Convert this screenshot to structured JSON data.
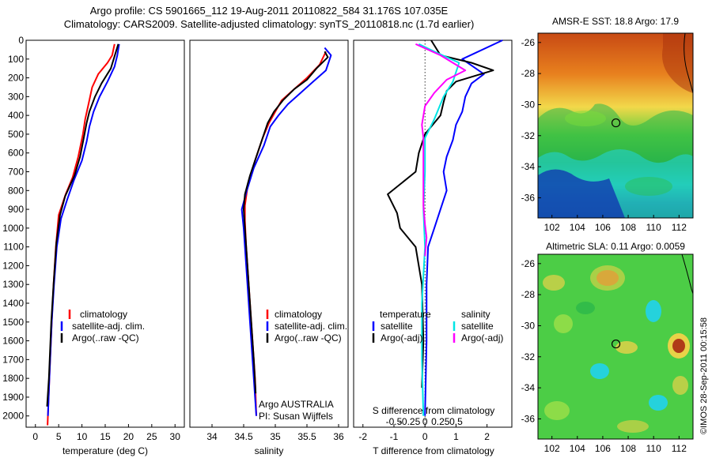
{
  "header": {
    "line1": "Argo profile: CS 5901665_112 19-Aug-2011 20110822_584 31.176S 107.035E",
    "line2": "Climatology: CARS2009. Satellite-adjusted climatology: synTS_20110818.nc (1.7d earlier)"
  },
  "colors": {
    "climatology": "#ff0000",
    "satellite": "#0000ff",
    "argo": "#000000",
    "cyan": "#00e5e5",
    "magenta": "#ff00ff"
  },
  "y_ticks": [
    0,
    100,
    200,
    300,
    400,
    500,
    600,
    700,
    800,
    900,
    1000,
    1100,
    1200,
    1300,
    1400,
    1500,
    1600,
    1700,
    1800,
    1900,
    2000
  ],
  "chart_data": [
    {
      "type": "line",
      "xlabel": "temperature (deg C)",
      "xlim": [
        -2,
        32
      ],
      "ylim": [
        2060,
        0
      ],
      "xticks": [
        0,
        5,
        10,
        15,
        20,
        25,
        30
      ],
      "legend": [
        "climatology",
        "satellite-adj. clim.",
        "Argo(..raw -QC)"
      ],
      "series": [
        {
          "name": "climatology",
          "color_key": "climatology",
          "points": [
            [
              17.0,
              20
            ],
            [
              16.5,
              80
            ],
            [
              15.5,
              120
            ],
            [
              13.5,
              180
            ],
            [
              12.2,
              250
            ],
            [
              11.5,
              330
            ],
            [
              10.7,
              420
            ],
            [
              10.2,
              500
            ],
            [
              9.2,
              620
            ],
            [
              8.0,
              730
            ],
            [
              6.5,
              820
            ],
            [
              5.0,
              930
            ],
            [
              4.4,
              1100
            ],
            [
              3.9,
              1300
            ],
            [
              3.5,
              1500
            ],
            [
              3.0,
              1800
            ],
            [
              2.6,
              2050
            ]
          ]
        },
        {
          "name": "satellite-adj. clim.",
          "color_key": "satellite",
          "points": [
            [
              18.0,
              20
            ],
            [
              17.6,
              80
            ],
            [
              17.0,
              140
            ],
            [
              15.5,
              220
            ],
            [
              13.8,
              300
            ],
            [
              12.5,
              380
            ],
            [
              11.6,
              460
            ],
            [
              11.0,
              540
            ],
            [
              10.0,
              640
            ],
            [
              8.2,
              750
            ],
            [
              6.8,
              850
            ],
            [
              5.5,
              950
            ],
            [
              4.6,
              1100
            ],
            [
              4.0,
              1300
            ],
            [
              3.5,
              1500
            ],
            [
              3.0,
              1800
            ],
            [
              2.7,
              2000
            ]
          ]
        },
        {
          "name": "Argo(..raw -QC)",
          "color_key": "argo",
          "points": [
            [
              17.8,
              20
            ],
            [
              17.2,
              70
            ],
            [
              16.2,
              150
            ],
            [
              14.2,
              230
            ],
            [
              12.8,
              300
            ],
            [
              11.6,
              380
            ],
            [
              11.0,
              440
            ],
            [
              10.4,
              520
            ],
            [
              9.6,
              620
            ],
            [
              8.4,
              720
            ],
            [
              6.4,
              830
            ],
            [
              5.3,
              930
            ],
            [
              4.5,
              1080
            ],
            [
              3.9,
              1300
            ],
            [
              3.4,
              1500
            ],
            [
              2.9,
              1800
            ],
            [
              2.5,
              1950
            ]
          ]
        }
      ]
    },
    {
      "type": "line",
      "xlabel": "salinity",
      "xlim": [
        33.65,
        36.15
      ],
      "ylim": [
        2060,
        0
      ],
      "xticks": [
        34,
        34.5,
        35,
        35.5,
        36
      ],
      "legend": [
        "climatology",
        "satellite-adj. clim.",
        "Argo(..raw -QC)"
      ],
      "annotations": [
        "Argo AUSTRALIA",
        "PI: Susan Wijffels"
      ],
      "series": [
        {
          "name": "climatology",
          "color_key": "climatology",
          "points": [
            [
              35.8,
              60
            ],
            [
              35.7,
              130
            ],
            [
              35.5,
              200
            ],
            [
              35.3,
              260
            ],
            [
              35.1,
              320
            ],
            [
              35.0,
              380
            ],
            [
              34.9,
              440
            ],
            [
              34.8,
              520
            ],
            [
              34.68,
              640
            ],
            [
              34.57,
              760
            ],
            [
              34.52,
              880
            ],
            [
              34.52,
              960
            ],
            [
              34.54,
              1100
            ],
            [
              34.57,
              1250
            ],
            [
              34.6,
              1400
            ],
            [
              34.64,
              1600
            ],
            [
              34.68,
              1800
            ],
            [
              34.7,
              2000
            ]
          ]
        },
        {
          "name": "satellite-adj. clim.",
          "color_key": "satellite",
          "points": [
            [
              35.78,
              40
            ],
            [
              35.88,
              80
            ],
            [
              35.8,
              160
            ],
            [
              35.6,
              220
            ],
            [
              35.4,
              280
            ],
            [
              35.2,
              340
            ],
            [
              35.05,
              400
            ],
            [
              34.92,
              460
            ],
            [
              34.82,
              560
            ],
            [
              34.66,
              680
            ],
            [
              34.55,
              800
            ],
            [
              34.47,
              900
            ],
            [
              34.5,
              1000
            ],
            [
              34.53,
              1150
            ],
            [
              34.56,
              1300
            ],
            [
              34.6,
              1500
            ],
            [
              34.64,
              1700
            ],
            [
              34.68,
              1900
            ],
            [
              34.7,
              2000
            ]
          ]
        },
        {
          "name": "Argo(..raw -QC)",
          "color_key": "argo",
          "points": [
            [
              35.78,
              60
            ],
            [
              35.83,
              90
            ],
            [
              35.65,
              150
            ],
            [
              35.5,
              210
            ],
            [
              35.3,
              260
            ],
            [
              35.12,
              320
            ],
            [
              34.98,
              380
            ],
            [
              34.88,
              440
            ],
            [
              34.8,
              520
            ],
            [
              34.7,
              620
            ],
            [
              34.6,
              720
            ],
            [
              34.52,
              820
            ],
            [
              34.5,
              900
            ],
            [
              34.52,
              1000
            ],
            [
              34.55,
              1150
            ],
            [
              34.58,
              1300
            ],
            [
              34.62,
              1500
            ],
            [
              34.66,
              1700
            ],
            [
              34.69,
              1880
            ]
          ]
        }
      ]
    },
    {
      "type": "line",
      "xlabel": "T difference from climatology",
      "xlabel_top": "S difference from climatology",
      "xlim": [
        -2.3,
        2.8
      ],
      "ylim": [
        2060,
        0
      ],
      "xticks": [
        -2,
        -1,
        0,
        1,
        2
      ],
      "xticks_top": [
        -0.5,
        -0.25,
        0,
        0.25,
        0.5
      ],
      "legend_temperature": [
        "temperature",
        "satellite",
        "Argo(-adj)"
      ],
      "legend_salinity": [
        "salinity",
        "satellite",
        "Argo(-adj)"
      ],
      "series": [
        {
          "name": "temperature satellite",
          "color_key": "satellite",
          "points": [
            [
              2.5,
              0
            ],
            [
              1.2,
              100
            ],
            [
              1.9,
              180
            ],
            [
              1.5,
              230
            ],
            [
              1.3,
              300
            ],
            [
              1.2,
              380
            ],
            [
              1.0,
              450
            ],
            [
              0.9,
              530
            ],
            [
              0.7,
              620
            ],
            [
              0.6,
              700
            ],
            [
              0.7,
              800
            ],
            [
              0.5,
              900
            ],
            [
              0.3,
              1000
            ],
            [
              0.1,
              1100
            ],
            [
              0.05,
              1300
            ],
            [
              0.05,
              1600
            ],
            [
              0.0,
              2000
            ]
          ]
        },
        {
          "name": "temperature Argo(-adj)",
          "color_key": "argo",
          "points": [
            [
              0.2,
              0
            ],
            [
              0.5,
              80
            ],
            [
              1.5,
              120
            ],
            [
              2.2,
              160
            ],
            [
              1.0,
              220
            ],
            [
              0.7,
              270
            ],
            [
              0.6,
              330
            ],
            [
              0.5,
              400
            ],
            [
              0.0,
              500
            ],
            [
              -0.2,
              600
            ],
            [
              -0.3,
              700
            ],
            [
              -1.2,
              820
            ],
            [
              -0.9,
              920
            ],
            [
              -0.8,
              1000
            ],
            [
              -0.3,
              1100
            ],
            [
              -0.1,
              1300
            ],
            [
              -0.05,
              1600
            ],
            [
              -0.1,
              1850
            ]
          ]
        },
        {
          "name": "salinity satellite",
          "color_key": "cyan",
          "points": [
            [
              -0.2,
              20
            ],
            [
              0.3,
              60
            ],
            [
              1.1,
              120
            ],
            [
              0.9,
              220
            ],
            [
              0.6,
              300
            ],
            [
              0.3,
              420
            ],
            [
              0.0,
              520
            ],
            [
              0.0,
              700
            ],
            [
              -0.05,
              900
            ],
            [
              0.0,
              1100
            ],
            [
              -0.1,
              1400
            ],
            [
              -0.1,
              1700
            ],
            [
              -0.05,
              2000
            ]
          ]
        },
        {
          "name": "salinity Argo(-adj)",
          "color_key": "magenta",
          "points": [
            [
              -0.3,
              20
            ],
            [
              0.5,
              80
            ],
            [
              1.3,
              160
            ],
            [
              0.7,
              210
            ],
            [
              0.3,
              280
            ],
            [
              0.0,
              350
            ],
            [
              -0.1,
              450
            ],
            [
              -0.05,
              520
            ],
            [
              -0.05,
              700
            ],
            [
              -0.05,
              880
            ],
            [
              0.0,
              980
            ],
            [
              0.05,
              1050
            ],
            [
              0.0,
              1150
            ]
          ]
        }
      ]
    }
  ],
  "maps": [
    {
      "title": "AMSR-E SST: 18.8 Argo: 17.9",
      "xticks": [
        102,
        104,
        106,
        108,
        110,
        112
      ],
      "yticks": [
        -26,
        -28,
        -30,
        -32,
        -34,
        -36
      ],
      "lonlim": [
        100.9,
        113.1
      ],
      "latlim": [
        -37.3,
        -25.4
      ],
      "marker": [
        107.035,
        -31.176
      ]
    },
    {
      "title": "Altimetric SLA: 0.11 Argo: 0.0059",
      "xticks": [
        102,
        104,
        106,
        108,
        110,
        112
      ],
      "yticks": [
        -26,
        -28,
        -30,
        -32,
        -34,
        -36
      ],
      "lonlim": [
        100.9,
        113.1
      ],
      "latlim": [
        -37.3,
        -25.4
      ],
      "marker": [
        107.035,
        -31.176
      ]
    }
  ],
  "side_label": "©IMOS 28-Sep-2011 00:15:58"
}
